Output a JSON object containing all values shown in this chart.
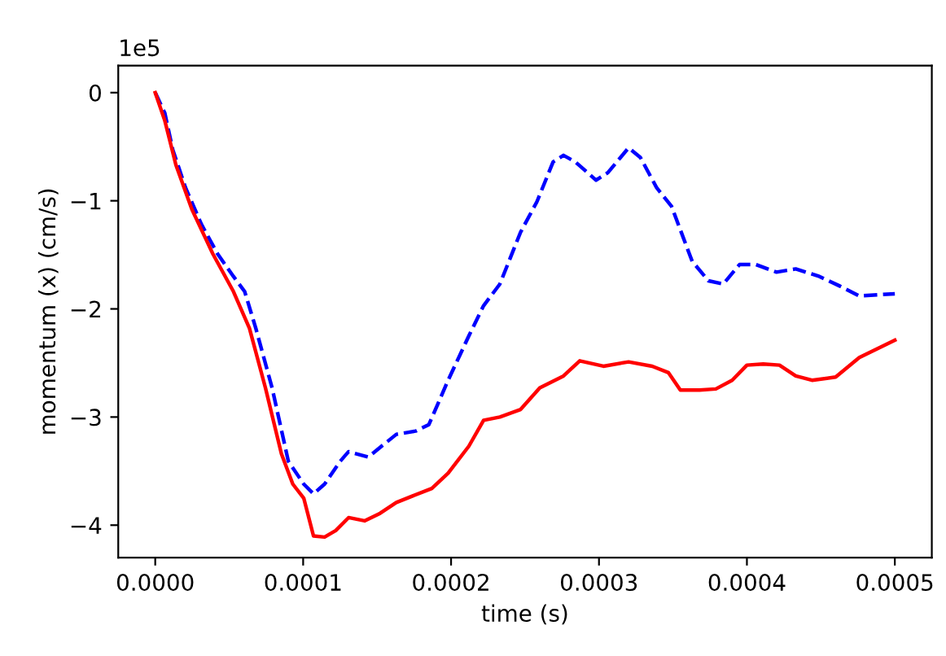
{
  "chart_data": {
    "type": "line",
    "xlabel": "time (s)",
    "ylabel": "momentum (x) (cm/s)",
    "annotations": [
      "1e5"
    ],
    "xlim": [
      -2.5e-05,
      0.000525
    ],
    "ylim": [
      -4.3,
      0.25
    ],
    "xticks": [
      {
        "value": 0,
        "label": "0.0000"
      },
      {
        "value": 0.0001,
        "label": "0.0001"
      },
      {
        "value": 0.0002,
        "label": "0.0002"
      },
      {
        "value": 0.0003,
        "label": "0.0003"
      },
      {
        "value": 0.0004,
        "label": "0.0004"
      },
      {
        "value": 0.0005,
        "label": "0.0005"
      }
    ],
    "yticks": [
      -4,
      -3,
      -2,
      -1,
      0
    ],
    "grid": false,
    "marker": "none",
    "series": [
      {
        "color": "#0000ff",
        "line_style": "dashed",
        "x": [
          0,
          6.5e-06,
          1.19e-05,
          2.05e-05,
          3.13e-05,
          4.21e-05,
          5.29e-05,
          6.05e-05,
          6.8e-05,
          7.9e-05,
          9e-05,
          0.0001004,
          0.000107,
          0.0001145,
          0.000125,
          0.0001307,
          0.000144,
          0.000163,
          0.000176,
          0.000185,
          0.000198,
          0.000212,
          0.000222,
          0.000233,
          0.000247,
          0.000258,
          0.000269,
          0.000276,
          0.000284,
          0.000298,
          0.000306,
          0.00032,
          0.000328,
          0.000339,
          0.000349,
          0.000363,
          0.000374,
          0.000384,
          0.000395,
          0.000406,
          0.00042,
          0.000433,
          0.000449,
          0.000463,
          0.000476,
          0.0005
        ],
        "values": [
          0,
          -0.19,
          -0.53,
          -0.88,
          -1.22,
          -1.49,
          -1.7,
          -1.84,
          -2.18,
          -2.73,
          -3.41,
          -3.62,
          -3.71,
          -3.62,
          -3.41,
          -3.32,
          -3.37,
          -3.16,
          -3.13,
          -3.07,
          -2.66,
          -2.25,
          -1.97,
          -1.77,
          -1.29,
          -1.01,
          -0.64,
          -0.58,
          -0.64,
          -0.81,
          -0.74,
          -0.51,
          -0.6,
          -0.88,
          -1.05,
          -1.56,
          -1.74,
          -1.77,
          -1.59,
          -1.59,
          -1.66,
          -1.63,
          -1.7,
          -1.79,
          -1.88,
          -1.86
        ]
      },
      {
        "color": "#ff0000",
        "line_style": "solid",
        "x": [
          0,
          6.5e-06,
          1.4e-05,
          2.48e-05,
          3.89e-05,
          5.29e-05,
          6.37e-05,
          7.45e-05,
          8.53e-05,
          9.3e-05,
          0.0001004,
          0.000107,
          0.0001145,
          0.000122,
          0.0001307,
          0.0001415,
          0.000152,
          0.000163,
          0.000174,
          0.000187,
          0.000198,
          0.000212,
          0.000222,
          0.000233,
          0.000247,
          0.00026,
          0.000276,
          0.000287,
          0.000303,
          0.00032,
          0.000336,
          0.000347,
          0.000355,
          0.000368,
          0.000379,
          0.00039,
          0.0004,
          0.000411,
          0.000422,
          0.000433,
          0.000444,
          0.00046,
          0.000476,
          0.0005
        ],
        "values": [
          0,
          -0.26,
          -0.67,
          -1.08,
          -1.49,
          -1.84,
          -2.18,
          -2.73,
          -3.34,
          -3.62,
          -3.75,
          -4.1,
          -4.11,
          -4.05,
          -3.93,
          -3.96,
          -3.89,
          -3.79,
          -3.73,
          -3.66,
          -3.52,
          -3.27,
          -3.03,
          -3.0,
          -2.93,
          -2.73,
          -2.62,
          -2.48,
          -2.53,
          -2.49,
          -2.53,
          -2.59,
          -2.75,
          -2.75,
          -2.74,
          -2.66,
          -2.52,
          -2.51,
          -2.52,
          -2.62,
          -2.66,
          -2.63,
          -2.45,
          -2.29
        ]
      }
    ]
  }
}
